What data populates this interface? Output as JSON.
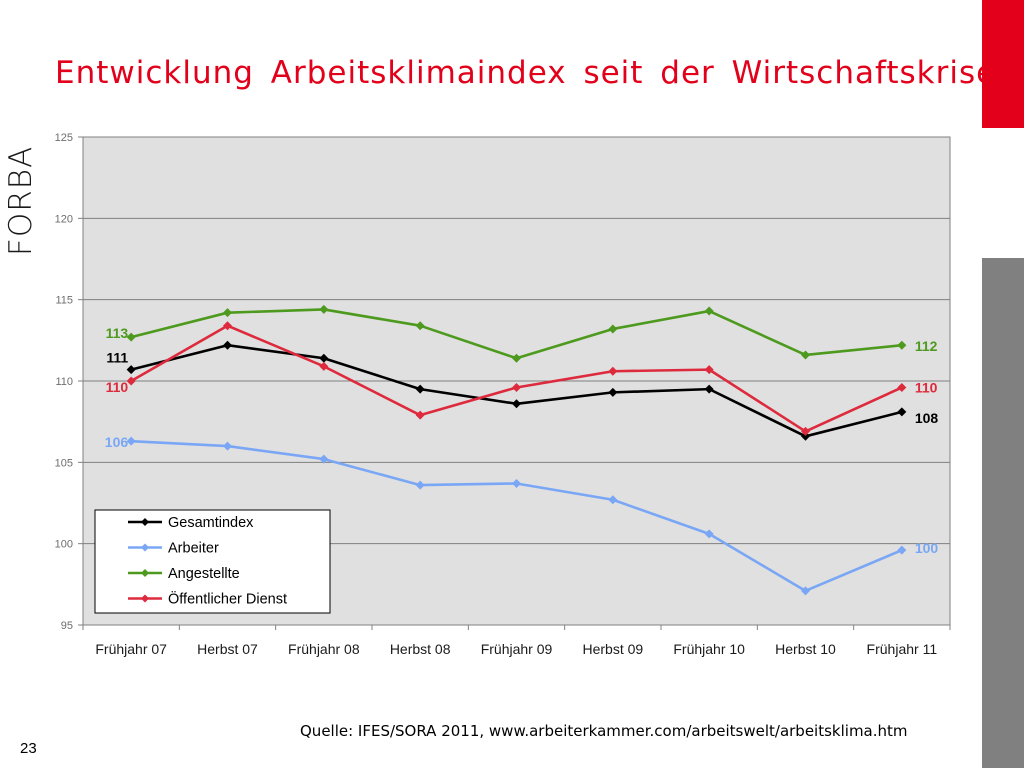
{
  "slide": {
    "title": "Entwicklung  Arbeitsklimaindex  seit  der  Wirtschaftskrise",
    "source": "Quelle: IFES/SORA 2011, www.arbeiterkammer.com/arbeitswelt/arbeitsklima.htm",
    "page_number": "23",
    "logo_text": "FORBA",
    "accent_color": "#e2001a",
    "sidebar_color": "#808080"
  },
  "chart_data": {
    "type": "line",
    "categories": [
      "Frühjahr 07",
      "Herbst 07",
      "Frühjahr 08",
      "Herbst 08",
      "Frühjahr 09",
      "Herbst 09",
      "Frühjahr 10",
      "Herbst 10",
      "Frühjahr 11"
    ],
    "ylim": [
      95,
      125
    ],
    "yticks": [
      95,
      100,
      105,
      110,
      115,
      120,
      125
    ],
    "grid": true,
    "legend_position": "bottom-left",
    "series": [
      {
        "name": "Gesamtindex",
        "color": "#000000",
        "values": [
          110.7,
          112.2,
          111.4,
          109.5,
          108.6,
          109.3,
          109.5,
          106.6,
          108.1
        ],
        "start_label": "111",
        "end_label": "108"
      },
      {
        "name": "Arbeiter",
        "color": "#7aa7f5",
        "values": [
          106.3,
          106.0,
          105.2,
          103.6,
          103.7,
          102.7,
          100.6,
          97.1,
          99.6
        ],
        "start_label": "106",
        "end_label": "100"
      },
      {
        "name": "Angestellte",
        "color": "#4d9a1e",
        "values": [
          112.7,
          114.2,
          114.4,
          113.4,
          111.4,
          113.2,
          114.3,
          111.6,
          112.2
        ],
        "start_label": "113",
        "end_label": "112"
      },
      {
        "name": "Öffentlicher Dienst",
        "color": "#dd2a3c",
        "values": [
          110.0,
          113.4,
          110.9,
          107.9,
          109.6,
          110.6,
          110.7,
          106.9,
          109.6
        ],
        "start_label": "110",
        "end_label": "110"
      }
    ]
  }
}
